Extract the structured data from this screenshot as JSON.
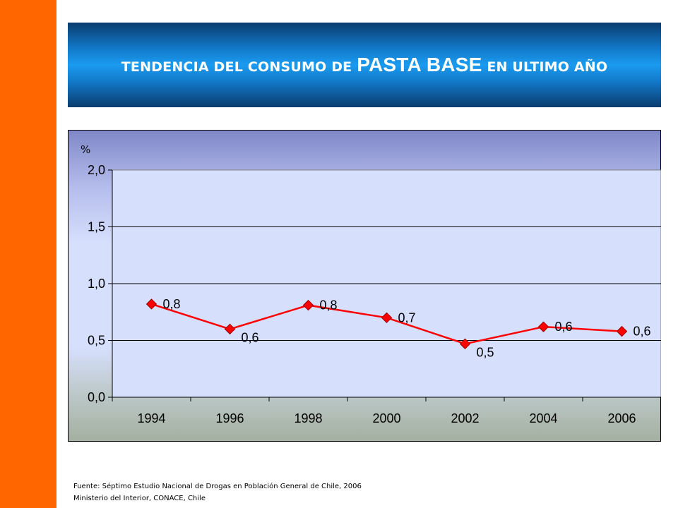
{
  "title": {
    "prefix": "TENDENCIA DEL CONSUMO DE",
    "highlight": "PASTA BASE",
    "suffix": "EN ULTIMO AÑO"
  },
  "colors": {
    "side_bar": "#ff6600",
    "series_line": "#ff0000",
    "plot_area": "#d6dffc"
  },
  "chart_data": {
    "type": "line",
    "unit_label": "%",
    "categories": [
      "1994",
      "1996",
      "1998",
      "2000",
      "2002",
      "2004",
      "2006"
    ],
    "values": [
      0.82,
      0.6,
      0.81,
      0.7,
      0.47,
      0.62,
      0.58
    ],
    "data_labels": [
      "0,8",
      "0,6",
      "0,8",
      "0,7",
      "0,5",
      "0,6",
      "0,6"
    ],
    "ylim": [
      0,
      2
    ],
    "yticks": [
      "2,0",
      "1,5",
      "1,0",
      "0,5",
      "0,0"
    ],
    "grid": true,
    "marker": "diamond"
  },
  "source": {
    "line1": "Fuente: Séptimo Estudio Nacional de Drogas en Población General de Chile, 2006",
    "line2": "Ministerio del Interior, CONACE, Chile"
  }
}
